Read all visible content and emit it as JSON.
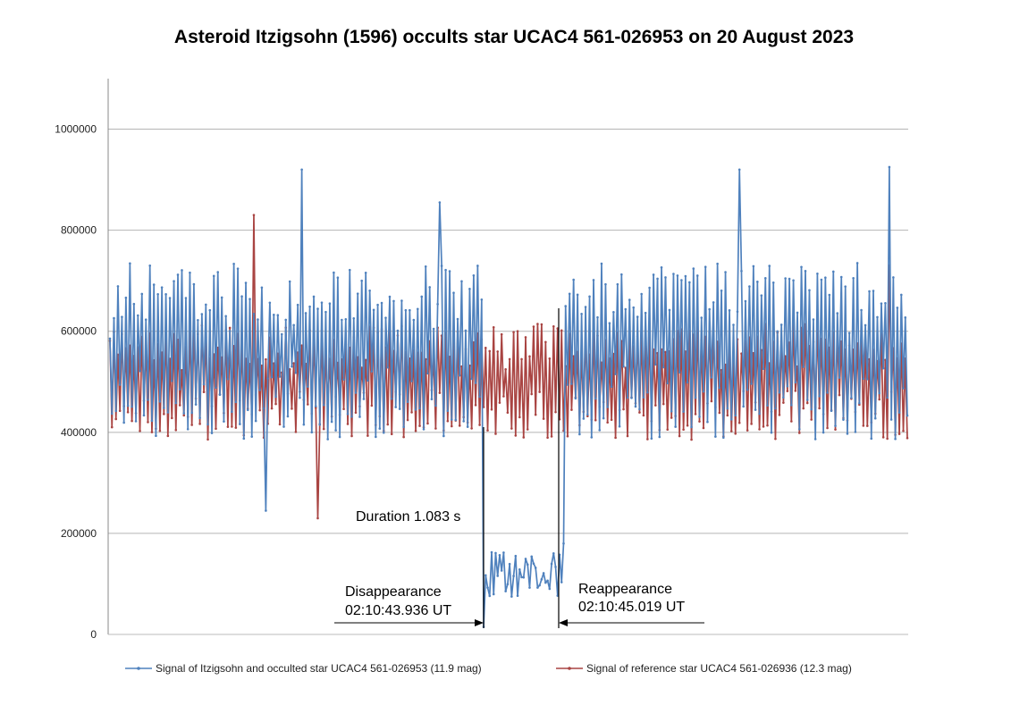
{
  "chart_data": {
    "type": "line",
    "title": "Asteroid Itzigsohn (1596) occults star UCAC4 561-026953 on 20 August 2023",
    "xlabel": "",
    "ylabel": "",
    "ylim": [
      0,
      1100000
    ],
    "yticks": [
      0,
      200000,
      400000,
      600000,
      800000,
      1000000
    ],
    "ytick_labels": [
      "0",
      "200000",
      "400000",
      "600000",
      "800000",
      "1000000"
    ],
    "grid": true,
    "legend_position": "bottom",
    "n_frames": 400,
    "series": [
      {
        "name": "Signal of Itzigsohn and occulted star UCAC4 561-026953 (11.9 mag)",
        "color": "#4f81bd",
        "baseline": 560000,
        "spread": 175000,
        "dip_start": 187,
        "dip_end": 227,
        "dip_level": 120000,
        "dip_spread": 45000,
        "peaks": [
          [
            96,
            920000
          ],
          [
            165,
            855000
          ],
          [
            315,
            920000
          ],
          [
            390,
            925000
          ],
          [
            78,
            245000
          ]
        ]
      },
      {
        "name": "Signal of reference star UCAC4 561-026936 (12.3 mag)",
        "color": "#a94442",
        "baseline": 500000,
        "spread": 115000,
        "peaks": [
          [
            72,
            830000
          ],
          [
            104,
            230000
          ],
          [
            390,
            730000
          ]
        ]
      }
    ],
    "annotations": {
      "duration": "Duration 1.083 s",
      "disappearance_label": "Disappearance",
      "disappearance_time": "02:10:43.936 UT",
      "reappearance_label": "Reappearance",
      "reappearance_time": "02:10:45.019 UT"
    }
  }
}
